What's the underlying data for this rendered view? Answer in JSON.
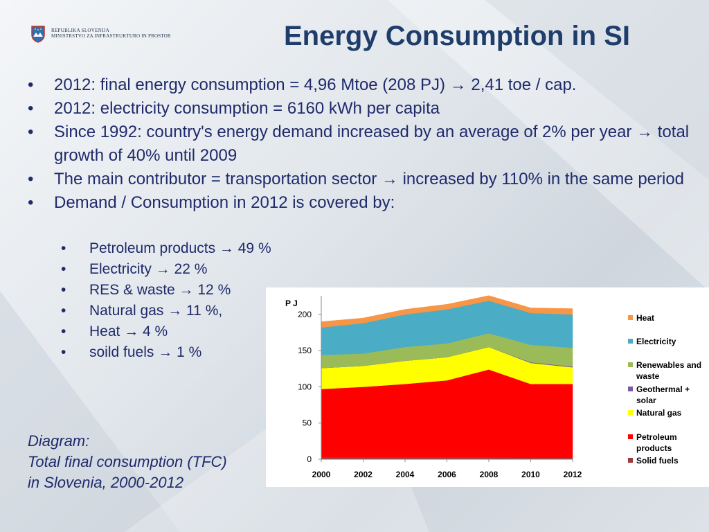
{
  "header": {
    "org_line1": "REPUBLIKA SLOVENIJA",
    "org_line2": "MINISTRSTVO ZA INFRASTRUKTURO IN PROSTOR",
    "title": "Energy Consumption in SI"
  },
  "bullets": [
    "2012: final energy consumption = 4,96 Mtoe (208 PJ) → 2,41 toe / cap.",
    "2012: electricity consumption = 6160 kWh per capita",
    "Since 1992: country's energy demand increased by an average of 2% per year   → total growth of 40% until 2009",
    "The main contributor = transportation sector → increased by 110% in the same period",
    "Demand / Consumption in 2012 is covered by:"
  ],
  "sub_bullets": [
    "Petroleum products → 49 %",
    "Electricity → 22 %",
    "RES & waste → 12 %",
    "Natural gas → 11 %,",
    "Heat → 4 %",
    "soild fuels → 1 %"
  ],
  "bullet_marker": "•",
  "caption": {
    "line1": "Diagram:",
    "line2": "Total final consumption (TFC)",
    "line3": "in Slovenia, 2000-2012"
  },
  "chart_data": {
    "type": "area",
    "stacked": true,
    "ylabel": "P J",
    "x": [
      2000,
      2002,
      2004,
      2006,
      2008,
      2010,
      2012
    ],
    "x_ticks": [
      "2000",
      "2002",
      "2004",
      "2006",
      "2008",
      "2010",
      "2012"
    ],
    "ylim": [
      0,
      220
    ],
    "y_ticks": [
      0,
      50,
      100,
      150,
      200
    ],
    "grid": false,
    "legend_position": "right",
    "series": [
      {
        "name": "Solid fuels",
        "color": "#9b3c3c",
        "values": [
          3,
          3,
          3,
          3,
          3,
          2,
          2
        ]
      },
      {
        "name": "Petroleum products",
        "color": "#ff0000",
        "values": [
          94,
          97,
          101,
          106,
          121,
          102,
          102
        ]
      },
      {
        "name": "Natural gas",
        "color": "#ffff00",
        "values": [
          29,
          29,
          32,
          32,
          31,
          29,
          23
        ]
      },
      {
        "name": "Geothermal + solar",
        "color": "#7a5aa0",
        "values": [
          0,
          0,
          0,
          0,
          0,
          1,
          1
        ]
      },
      {
        "name": "Renewables and waste",
        "color": "#9bbb59",
        "values": [
          18,
          17,
          19,
          19,
          19,
          24,
          26
        ]
      },
      {
        "name": "Electricity",
        "color": "#4bacc6",
        "values": [
          38,
          42,
          45,
          47,
          45,
          44,
          46
        ]
      },
      {
        "name": "Heat",
        "color": "#f79646",
        "values": [
          8,
          7,
          7,
          7,
          7,
          7,
          8
        ]
      }
    ],
    "legend_order": [
      "Heat",
      "Electricity",
      "Renewables and waste",
      "Geothermal + solar",
      "Natural gas",
      "Petroleum products",
      "Solid fuels"
    ]
  }
}
